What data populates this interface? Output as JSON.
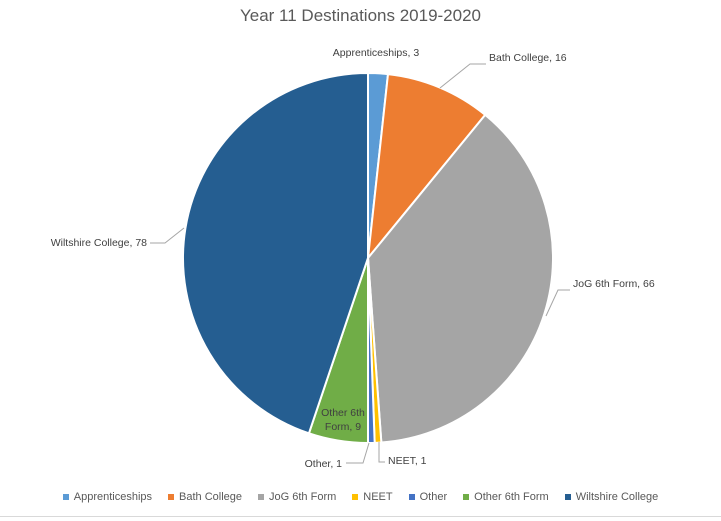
{
  "chart_data": {
    "type": "pie",
    "title": "Year 11 Destinations 2019-2020",
    "categories": [
      "Apprenticeships",
      "Bath College",
      "JoG 6th Form",
      "NEET",
      "Other",
      "Other 6th Form",
      "Wiltshire College"
    ],
    "values": [
      3,
      16,
      66,
      1,
      1,
      9,
      78
    ],
    "colors": [
      "#5b9bd5",
      "#ed7d31",
      "#a5a5a5",
      "#ffc000",
      "#4472c4",
      "#70ad47",
      "#255e91"
    ],
    "data_labels": [
      "Apprenticeships, 3",
      "Bath College, 16",
      "JoG 6th Form, 66",
      "NEET, 1",
      "Other, 1",
      "Other 6th Form, 9",
      "Wiltshire College, 78"
    ],
    "legend_position": "bottom"
  }
}
